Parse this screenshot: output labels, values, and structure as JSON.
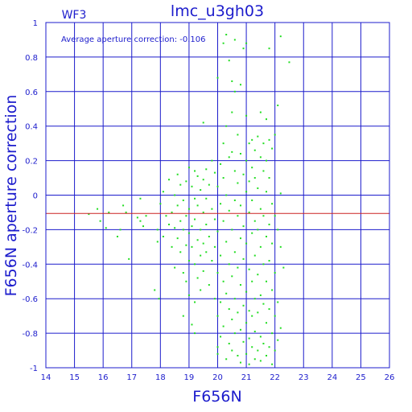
{
  "panel_label": "WF3",
  "chart_data": {
    "type": "scatter",
    "title": "lmc_u3gh03",
    "xlabel": "F656N",
    "ylabel": "F656N aperture correction",
    "annotation": "Average aperture correction: -0.106",
    "reference_line": -0.106,
    "xlim": [
      14,
      26
    ],
    "ylim": [
      -1,
      1
    ],
    "grid": true,
    "xticks": [
      14,
      15,
      16,
      17,
      18,
      19,
      20,
      21,
      22,
      23,
      24,
      25,
      26
    ],
    "yticks": [
      -1,
      -0.8,
      -0.6,
      -0.4,
      -0.2,
      0,
      0.2,
      0.4,
      0.6,
      0.8,
      1
    ],
    "ytick_labels": [
      "-1",
      "-0.8",
      "-0.6",
      "-0.4",
      "-0.2",
      "0",
      "0.2",
      "0.4",
      "0.6",
      "0.8",
      "1"
    ],
    "colors": {
      "axes": "#1c1ccc",
      "grid": "#1c1ccc",
      "points": "#22dd22",
      "reference_line": "#cc2222",
      "text": "#1c1ccc"
    },
    "points": [
      [
        15.5,
        -0.11
      ],
      [
        15.8,
        -0.08
      ],
      [
        15.9,
        -0.15
      ],
      [
        16.1,
        -0.19
      ],
      [
        16.2,
        -0.1
      ],
      [
        16.5,
        -0.24
      ],
      [
        16.6,
        -0.2
      ],
      [
        16.7,
        -0.06
      ],
      [
        16.8,
        -0.1
      ],
      [
        16.9,
        -0.37
      ],
      [
        17.2,
        -0.13
      ],
      [
        17.3,
        -0.15
      ],
      [
        17.4,
        -0.18
      ],
      [
        17.5,
        -0.12
      ],
      [
        17.3,
        -0.02
      ],
      [
        17.8,
        -0.55
      ],
      [
        17.9,
        -0.2
      ],
      [
        17.9,
        -0.27
      ],
      [
        17.95,
        -0.6
      ],
      [
        18.0,
        -0.05
      ],
      [
        18.1,
        0.02
      ],
      [
        18.1,
        -0.24
      ],
      [
        18.2,
        -0.12
      ],
      [
        18.3,
        0.09
      ],
      [
        18.3,
        -0.17
      ],
      [
        18.4,
        -0.1
      ],
      [
        18.4,
        -0.3
      ],
      [
        18.5,
        0.0
      ],
      [
        18.5,
        -0.19
      ],
      [
        18.5,
        -0.42
      ],
      [
        18.6,
        0.12
      ],
      [
        18.6,
        -0.06
      ],
      [
        18.6,
        -0.25
      ],
      [
        18.7,
        0.06
      ],
      [
        18.7,
        -0.15
      ],
      [
        18.7,
        -0.33
      ],
      [
        18.8,
        -0.03
      ],
      [
        18.8,
        -0.2
      ],
      [
        18.8,
        -0.45
      ],
      [
        18.8,
        -0.7
      ],
      [
        18.9,
        0.08
      ],
      [
        18.9,
        -0.12
      ],
      [
        18.9,
        -0.29
      ],
      [
        18.9,
        -0.5
      ],
      [
        19.0,
        0.16
      ],
      [
        19.0,
        -0.08
      ],
      [
        19.0,
        -0.22
      ],
      [
        19.0,
        -0.38
      ],
      [
        19.0,
        -0.58
      ],
      [
        19.1,
        0.05
      ],
      [
        19.1,
        -0.18
      ],
      [
        19.1,
        -0.3
      ],
      [
        19.1,
        -0.75
      ],
      [
        19.2,
        0.14
      ],
      [
        19.2,
        -0.02
      ],
      [
        19.2,
        -0.14
      ],
      [
        19.2,
        -0.4
      ],
      [
        19.2,
        -0.62
      ],
      [
        19.2,
        -0.8
      ],
      [
        19.3,
        0.11
      ],
      [
        19.3,
        -0.06
      ],
      [
        19.3,
        -0.26
      ],
      [
        19.3,
        -0.48
      ],
      [
        19.4,
        0.03
      ],
      [
        19.4,
        -0.2
      ],
      [
        19.4,
        -0.35
      ],
      [
        19.4,
        -0.55
      ],
      [
        19.5,
        0.42
      ],
      [
        19.5,
        0.09
      ],
      [
        19.5,
        -0.1
      ],
      [
        19.5,
        -0.28
      ],
      [
        19.5,
        -0.44
      ],
      [
        19.6,
        0.15
      ],
      [
        19.6,
        -0.02
      ],
      [
        19.6,
        -0.17
      ],
      [
        19.6,
        -0.33
      ],
      [
        19.7,
        0.06
      ],
      [
        19.7,
        -0.24
      ],
      [
        19.7,
        -0.52
      ],
      [
        19.8,
        0.2
      ],
      [
        19.8,
        -0.08
      ],
      [
        19.8,
        -0.38
      ],
      [
        19.9,
        0.13
      ],
      [
        19.9,
        -0.14
      ],
      [
        19.9,
        -0.3
      ],
      [
        19.9,
        -0.6
      ],
      [
        20.0,
        0.68
      ],
      [
        20.0,
        0.05
      ],
      [
        20.0,
        -0.21
      ],
      [
        20.0,
        -0.45
      ],
      [
        20.0,
        -0.7
      ],
      [
        20.0,
        -0.88
      ],
      [
        20.0,
        -0.92
      ],
      [
        20.1,
        0.18
      ],
      [
        20.1,
        -0.05
      ],
      [
        20.1,
        -0.35
      ],
      [
        20.1,
        -0.62
      ],
      [
        20.1,
        -0.82
      ],
      [
        20.2,
        0.88
      ],
      [
        20.2,
        0.3
      ],
      [
        20.2,
        0.1
      ],
      [
        20.2,
        -0.15
      ],
      [
        20.2,
        -0.5
      ],
      [
        20.2,
        -0.76
      ],
      [
        20.3,
        0.93
      ],
      [
        20.3,
        0.4
      ],
      [
        20.3,
        0.0
      ],
      [
        20.3,
        -0.27
      ],
      [
        20.3,
        -0.57
      ],
      [
        20.3,
        -0.95
      ],
      [
        20.4,
        0.78
      ],
      [
        20.4,
        0.22
      ],
      [
        20.4,
        -0.09
      ],
      [
        20.4,
        -0.4
      ],
      [
        20.4,
        -0.66
      ],
      [
        20.4,
        -0.86
      ],
      [
        20.5,
        0.66
      ],
      [
        20.5,
        0.48
      ],
      [
        20.5,
        0.25
      ],
      [
        20.5,
        -0.2
      ],
      [
        20.5,
        -0.47
      ],
      [
        20.5,
        -0.72
      ],
      [
        20.5,
        -0.9
      ],
      [
        20.6,
        0.9
      ],
      [
        20.6,
        0.6
      ],
      [
        20.6,
        0.14
      ],
      [
        20.6,
        -0.03
      ],
      [
        20.6,
        -0.33
      ],
      [
        20.6,
        -0.6
      ],
      [
        20.6,
        -0.8
      ],
      [
        20.7,
        0.35
      ],
      [
        20.7,
        0.07
      ],
      [
        20.7,
        -0.12
      ],
      [
        20.7,
        -0.42
      ],
      [
        20.7,
        -0.68
      ],
      [
        20.7,
        -0.93
      ],
      [
        20.8,
        0.64
      ],
      [
        20.8,
        0.24
      ],
      [
        20.8,
        -0.06
      ],
      [
        20.8,
        -0.25
      ],
      [
        20.8,
        -0.52
      ],
      [
        20.8,
        -0.78
      ],
      [
        20.8,
        -0.97
      ],
      [
        20.9,
        0.85
      ],
      [
        20.9,
        0.12
      ],
      [
        20.9,
        -0.18
      ],
      [
        20.9,
        -0.37
      ],
      [
        20.9,
        -0.64
      ],
      [
        20.9,
        -0.85
      ],
      [
        21.0,
        0.88
      ],
      [
        21.0,
        0.46
      ],
      [
        21.0,
        0.2
      ],
      [
        21.0,
        0.02
      ],
      [
        21.0,
        -0.28
      ],
      [
        21.0,
        -0.56
      ],
      [
        21.0,
        -0.74
      ],
      [
        21.0,
        -0.92
      ],
      [
        21.1,
        0.3
      ],
      [
        21.1,
        0.08
      ],
      [
        21.1,
        -0.1
      ],
      [
        21.1,
        -0.43
      ],
      [
        21.1,
        -0.67
      ],
      [
        21.1,
        -0.83
      ],
      [
        21.1,
        -0.98
      ],
      [
        21.2,
        0.32
      ],
      [
        21.2,
        0.16
      ],
      [
        21.2,
        -0.03
      ],
      [
        21.2,
        -0.22
      ],
      [
        21.2,
        -0.5
      ],
      [
        21.2,
        -0.7
      ],
      [
        21.2,
        -0.88
      ],
      [
        21.3,
        0.26
      ],
      [
        21.3,
        0.1
      ],
      [
        21.3,
        -0.15
      ],
      [
        21.3,
        -0.35
      ],
      [
        21.3,
        -0.6
      ],
      [
        21.3,
        -0.79
      ],
      [
        21.3,
        -0.95
      ],
      [
        21.4,
        0.34
      ],
      [
        21.4,
        0.04
      ],
      [
        21.4,
        -0.2
      ],
      [
        21.4,
        -0.46
      ],
      [
        21.4,
        -0.68
      ],
      [
        21.4,
        -0.9
      ],
      [
        21.5,
        0.48
      ],
      [
        21.5,
        0.22
      ],
      [
        21.5,
        -0.08
      ],
      [
        21.5,
        -0.3
      ],
      [
        21.5,
        -0.58
      ],
      [
        21.5,
        -0.82
      ],
      [
        21.5,
        -0.96
      ],
      [
        21.6,
        0.3
      ],
      [
        21.6,
        0.14
      ],
      [
        21.6,
        -0.12
      ],
      [
        21.6,
        -0.4
      ],
      [
        21.6,
        -0.63
      ],
      [
        21.6,
        -0.86
      ],
      [
        21.7,
        0.44
      ],
      [
        21.7,
        0.2
      ],
      [
        21.7,
        0.02
      ],
      [
        21.7,
        -0.24
      ],
      [
        21.7,
        -0.5
      ],
      [
        21.7,
        -0.74
      ],
      [
        21.7,
        -0.93
      ],
      [
        21.8,
        0.85
      ],
      [
        21.8,
        0.32
      ],
      [
        21.8,
        0.1
      ],
      [
        21.8,
        -0.17
      ],
      [
        21.8,
        -0.38
      ],
      [
        21.8,
        -0.66
      ],
      [
        21.8,
        -0.88
      ],
      [
        21.9,
        0.27
      ],
      [
        21.9,
        -0.05
      ],
      [
        21.9,
        -0.28
      ],
      [
        21.9,
        -0.55
      ],
      [
        21.9,
        -0.8
      ],
      [
        21.9,
        -0.98
      ],
      [
        22.0,
        0.35
      ],
      [
        22.0,
        -0.12
      ],
      [
        22.0,
        -0.45
      ],
      [
        22.0,
        -0.7
      ],
      [
        22.0,
        -0.9
      ],
      [
        22.1,
        0.52
      ],
      [
        22.1,
        -0.2
      ],
      [
        22.1,
        -0.62
      ],
      [
        22.1,
        -0.84
      ],
      [
        22.2,
        0.92
      ],
      [
        22.2,
        0.01
      ],
      [
        22.2,
        -0.3
      ],
      [
        22.2,
        -0.77
      ],
      [
        22.3,
        -0.42
      ],
      [
        22.5,
        0.77
      ]
    ]
  }
}
